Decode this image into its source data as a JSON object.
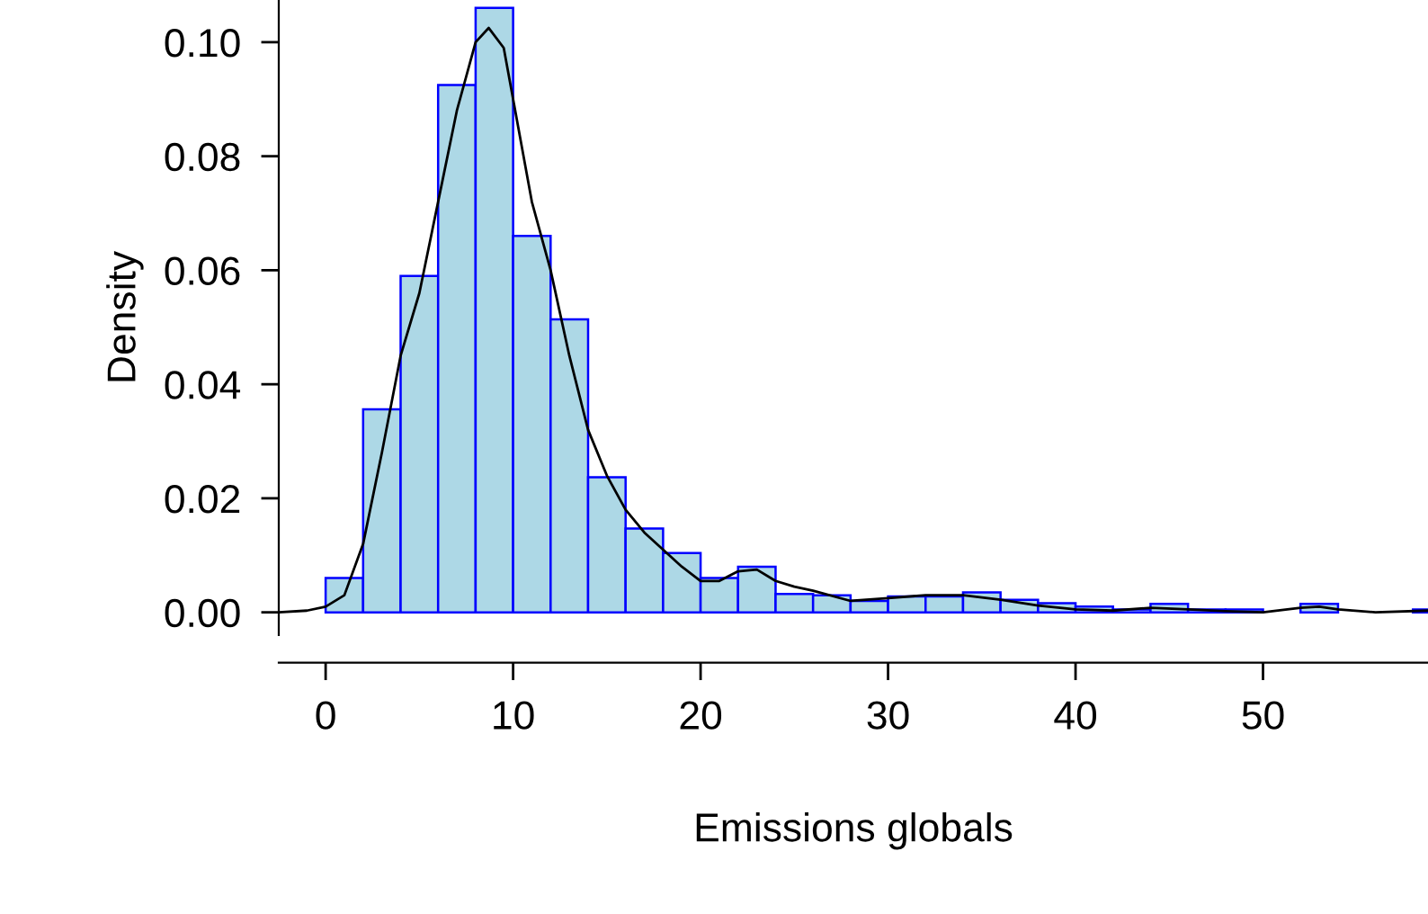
{
  "chart_data": {
    "type": "histogram",
    "xlabel": "Emissions globals",
    "ylabel": "Density",
    "xlim": [
      -2.5,
      58.8
    ],
    "ylim": [
      -0.004,
      0.1074
    ],
    "xticks": [
      0,
      10,
      20,
      30,
      40,
      50
    ],
    "yticks": [
      {
        "value": 0,
        "label": "0.00"
      },
      {
        "value": 0.02,
        "label": "0.02"
      },
      {
        "value": 0.04,
        "label": "0.04"
      },
      {
        "value": 0.06,
        "label": "0.06"
      },
      {
        "value": 0.08,
        "label": "0.08"
      },
      {
        "value": 0.1,
        "label": "0.10"
      }
    ],
    "grid": false,
    "legend": false,
    "series": [
      {
        "color": "#add8e6",
        "bins": [
          0,
          2,
          4,
          6,
          8,
          10,
          12,
          14,
          16,
          18,
          20,
          22,
          24,
          26,
          28,
          30,
          32,
          34,
          36,
          38,
          40,
          42,
          44,
          46,
          48,
          50,
          52,
          54,
          56,
          58,
          60
        ],
        "values": [
          0.006,
          0.0356,
          0.059,
          0.0925,
          0.106,
          0.066,
          0.0514,
          0.0237,
          0.0147,
          0.0104,
          0.006,
          0.008,
          0.0032,
          0.003,
          0.002,
          0.0028,
          0.0028,
          0.0035,
          0.0022,
          0.0016,
          0.001,
          0.0005,
          0.0015,
          0.0005,
          0.0005,
          0,
          0.0015,
          0,
          0,
          0.0005
        ]
      },
      {
        "type": "line",
        "color": "#000000",
        "x": [
          -2.5,
          -1,
          0,
          1,
          2,
          3,
          4,
          5,
          6,
          7,
          8,
          8.7,
          9.5,
          10,
          11,
          12,
          13,
          14,
          15,
          16,
          17,
          18,
          19,
          20,
          21,
          22,
          23,
          24,
          25,
          26,
          28,
          30,
          32,
          34,
          36,
          38,
          40,
          42,
          44,
          46,
          48,
          50,
          52,
          53,
          54,
          56,
          58.8
        ],
        "values": [
          0,
          0.0003,
          0.001,
          0.003,
          0.012,
          0.028,
          0.045,
          0.056,
          0.072,
          0.088,
          0.1,
          0.1025,
          0.099,
          0.09,
          0.072,
          0.06,
          0.045,
          0.032,
          0.024,
          0.018,
          0.014,
          0.011,
          0.008,
          0.0055,
          0.0055,
          0.0072,
          0.0075,
          0.0055,
          0.0045,
          0.0038,
          0.002,
          0.0025,
          0.003,
          0.003,
          0.0022,
          0.0012,
          0.0005,
          0.0003,
          0.0008,
          0.0005,
          0.0002,
          0,
          0.0008,
          0.001,
          0.0005,
          0,
          0.0003
        ]
      }
    ]
  }
}
